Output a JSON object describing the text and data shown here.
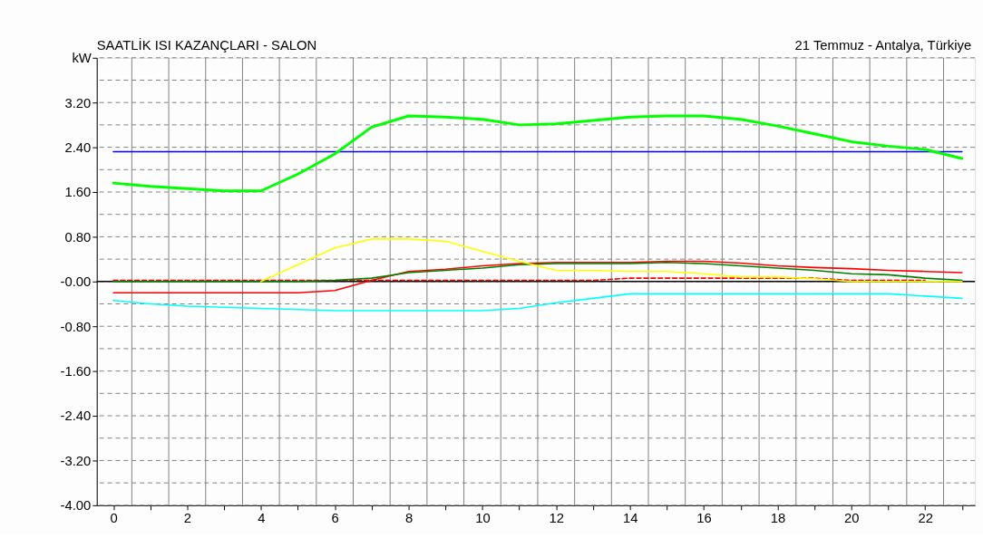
{
  "chart_data": {
    "type": "line",
    "title": "SAATLİK ISI KAZANÇLARI - SALON",
    "subtitle": "21 Temmuz - Antalya, Türkiye",
    "ylabel": "kW",
    "x": [
      0,
      1,
      2,
      3,
      4,
      5,
      6,
      7,
      8,
      9,
      10,
      11,
      12,
      13,
      14,
      15,
      16,
      17,
      18,
      19,
      20,
      21,
      22,
      23
    ],
    "series": [
      {
        "color": "#ff0000",
        "line_style": "dashed",
        "values": [
          0.02,
          0.02,
          0.02,
          0.02,
          0.02,
          0.02,
          0.02,
          0.02,
          0.02,
          0.02,
          0.02,
          0.02,
          0.02,
          0.02,
          0.06,
          0.06,
          0.06,
          0.06,
          0.06,
          0.06,
          0.02,
          0.02,
          0.02,
          null
        ]
      },
      {
        "color": "#00ffff",
        "values": [
          -0.34,
          -0.4,
          -0.44,
          -0.46,
          -0.48,
          -0.5,
          -0.52,
          -0.52,
          -0.52,
          -0.52,
          -0.52,
          -0.48,
          -0.38,
          -0.3,
          -0.22,
          -0.22,
          -0.22,
          -0.22,
          -0.22,
          -0.22,
          -0.22,
          -0.22,
          -0.26,
          -0.3
        ]
      },
      {
        "color": "#ff0000",
        "values": [
          -0.2,
          -0.2,
          -0.2,
          -0.2,
          -0.2,
          -0.2,
          -0.16,
          0.02,
          0.18,
          0.22,
          0.28,
          0.32,
          0.34,
          0.34,
          0.34,
          0.36,
          0.36,
          0.33,
          0.28,
          0.25,
          0.23,
          0.2,
          0.18,
          0.16
        ]
      },
      {
        "color": "#008000",
        "values": [
          0,
          0,
          0,
          0,
          0,
          0,
          0.02,
          0.06,
          0.16,
          0.2,
          0.24,
          0.3,
          0.32,
          0.32,
          0.32,
          0.34,
          0.32,
          0.28,
          0.24,
          0.2,
          0.14,
          0.12,
          0.06,
          0.02
        ]
      },
      {
        "color": "#ffff00",
        "values": [
          null,
          null,
          null,
          null,
          0,
          0.3,
          0.6,
          0.76,
          0.76,
          0.72,
          0.54,
          0.36,
          0.2,
          0.2,
          0.18,
          0.18,
          0.14,
          0.08,
          0.08,
          0.05,
          0,
          0,
          0,
          0
        ]
      },
      {
        "color": "#0000ff",
        "values": [
          2.32,
          2.32,
          2.32,
          2.32,
          2.32,
          2.32,
          2.32,
          2.32,
          2.32,
          2.32,
          2.32,
          2.32,
          2.32,
          2.32,
          2.32,
          2.32,
          2.32,
          2.32,
          2.32,
          2.32,
          2.32,
          2.32,
          2.32,
          2.32
        ]
      },
      {
        "color": "#00ff00",
        "values": [
          1.76,
          1.7,
          1.66,
          1.62,
          1.62,
          1.92,
          2.28,
          2.76,
          2.96,
          2.94,
          2.9,
          2.8,
          2.82,
          2.88,
          2.94,
          2.96,
          2.96,
          2.9,
          2.78,
          2.64,
          2.5,
          2.42,
          2.36,
          2.2
        ]
      }
    ],
    "ref_lines": [
      {
        "axis": "y",
        "value": 0,
        "color": "#000000"
      }
    ],
    "xlim": [
      -0.45,
      23.35
    ],
    "xticks": [
      0,
      {
        "value": 1,
        "label": null
      },
      2,
      {
        "value": 3,
        "label": null
      },
      4,
      {
        "value": 5,
        "label": null
      },
      6,
      {
        "value": 7,
        "label": null
      },
      8,
      {
        "value": 9,
        "label": null
      },
      10,
      {
        "value": 11,
        "label": null
      },
      12,
      {
        "value": 13,
        "label": null
      },
      14,
      {
        "value": 15,
        "label": null
      },
      16,
      {
        "value": 17,
        "label": null
      },
      18,
      {
        "value": 19,
        "label": null
      },
      20,
      {
        "value": 21,
        "label": null
      },
      22,
      {
        "value": 23,
        "label": null
      }
    ],
    "ylim": [
      -4,
      4
    ],
    "yticks": [
      {
        "value": -4,
        "label": "-4.00"
      },
      {
        "value": -3.6,
        "label": null
      },
      {
        "value": -3.2,
        "label": "-3.20"
      },
      {
        "value": -2.8,
        "label": null
      },
      {
        "value": -2.4,
        "label": "-2.40"
      },
      {
        "value": -2.0,
        "label": null
      },
      {
        "value": -1.6,
        "label": "-1.60"
      },
      {
        "value": -1.2,
        "label": null
      },
      {
        "value": -0.8,
        "label": "-0.80"
      },
      {
        "value": -0.4,
        "label": null
      },
      {
        "value": 0,
        "label": "-0.00"
      },
      {
        "value": 0.4,
        "label": null
      },
      {
        "value": 0.8,
        "label": "0.80"
      },
      {
        "value": 1.2,
        "label": null
      },
      {
        "value": 1.6,
        "label": "1.60"
      },
      {
        "value": 2.0,
        "label": null
      },
      {
        "value": 2.4,
        "label": "2.40"
      },
      {
        "value": 2.8,
        "label": null
      },
      {
        "value": 3.2,
        "label": "3.20"
      },
      {
        "value": 3.6,
        "label": null
      },
      {
        "value": 4,
        "label": null
      }
    ],
    "grid": true,
    "marker": "none",
    "line_style": "solid"
  }
}
